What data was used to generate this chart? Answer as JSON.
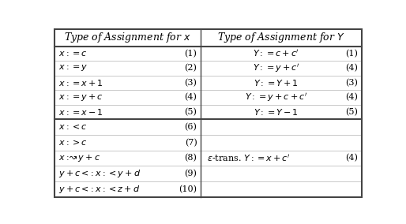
{
  "col1_header": "Type of Assignment for $x$",
  "col2_header": "Type of Assignment for $Y$",
  "top_rows_left": [
    [
      "$x := c$",
      "(1)"
    ],
    [
      "$x := y$",
      "(2)"
    ],
    [
      "$x := x + 1$",
      "(3)"
    ],
    [
      "$x := y + c$",
      "(4)"
    ],
    [
      "$x := x - 1$",
      "(5)"
    ]
  ],
  "top_rows_right": [
    [
      "$Y := c + c'$",
      "(1)"
    ],
    [
      "$Y := y + c'$",
      "(4)"
    ],
    [
      "$Y := Y + 1$",
      "(3)"
    ],
    [
      "$Y := y + c + c'$",
      "(4)"
    ],
    [
      "$Y := Y - 1$",
      "(5)"
    ]
  ],
  "bot_rows_left": [
    [
      "$x :< c$",
      "(6)"
    ],
    [
      "$x :> c$",
      "(7)"
    ],
    [
      "$x :\\!\\rightsquigarrow y + c$",
      "(8)"
    ],
    [
      "$y + c <\\!: x :\\!< y + d$",
      "(9)"
    ],
    [
      "$y + c <\\!: x :\\!< z + d$",
      "(10)"
    ]
  ],
  "bot_rows_right_text": "$\\epsilon\\text{-trans.}\\; Y := x + c'$",
  "bot_rows_right_num": "(4)",
  "border_color": "#444444",
  "fig_w": 5.14,
  "fig_h": 2.84,
  "dpi": 100
}
